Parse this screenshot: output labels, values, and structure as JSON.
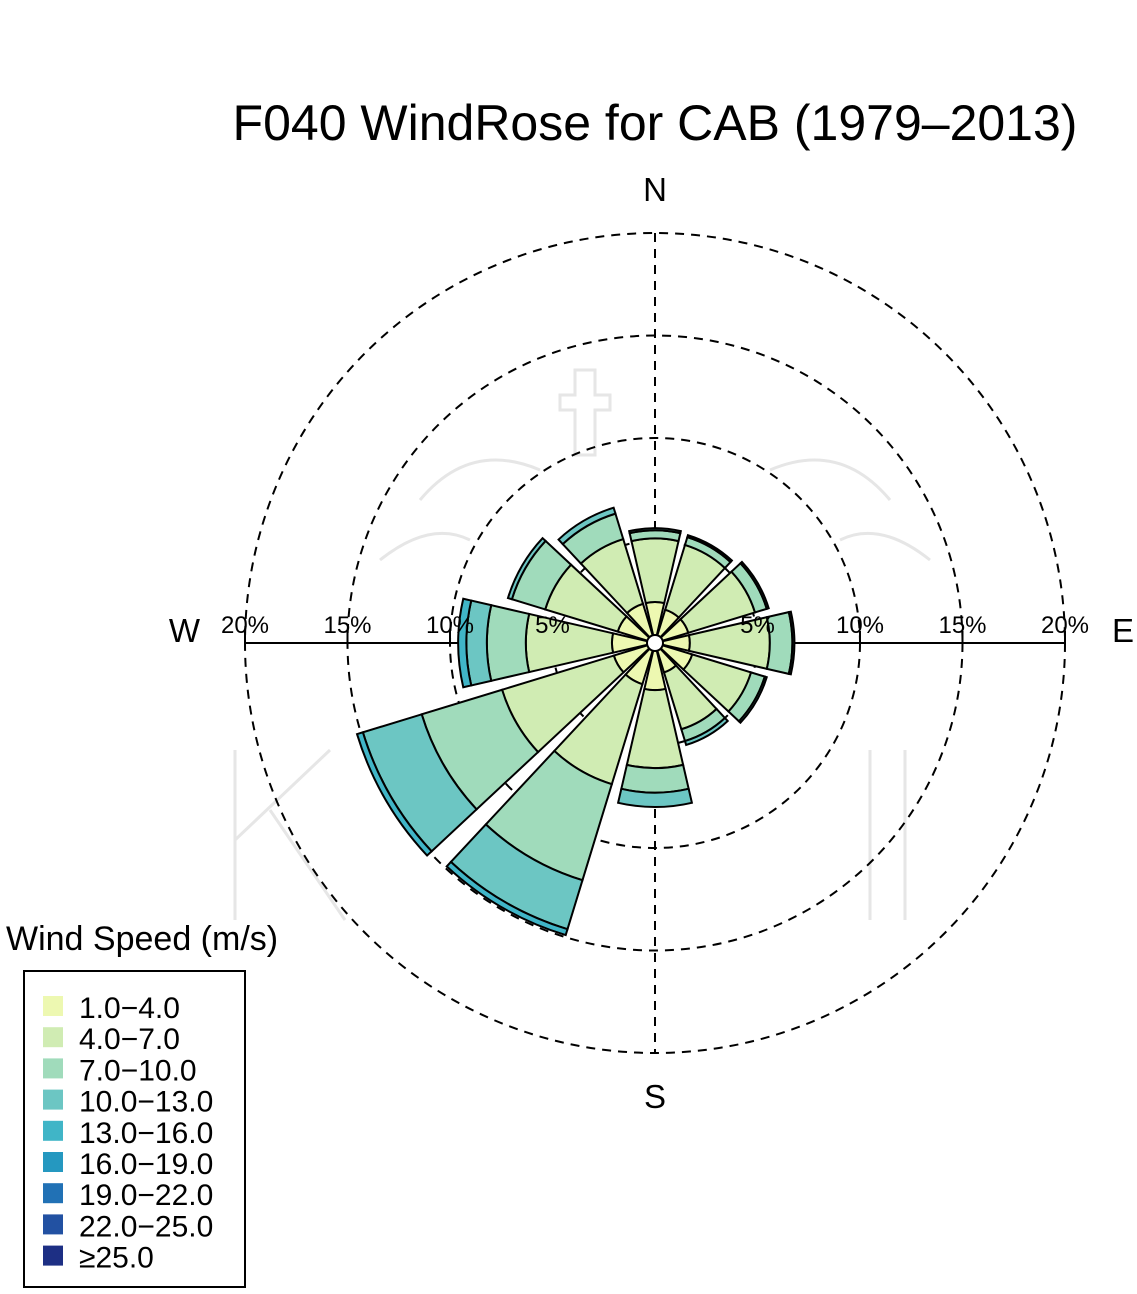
{
  "chart_data": {
    "type": "windrose",
    "title": "F040 WindRose for CAB (1979–2013)",
    "compass_labels": {
      "n": "N",
      "e": "E",
      "s": "S",
      "w": "W"
    },
    "radial_ticks": [
      {
        "value": 5,
        "label": "5%"
      },
      {
        "value": 10,
        "label": "10%"
      },
      {
        "value": 15,
        "label": "15%"
      },
      {
        "value": 20,
        "label": "20%"
      }
    ],
    "radial_max": 20,
    "grid": true,
    "legend": {
      "title": "Wind Speed (m/s)",
      "position": "bottom-left",
      "bins": [
        {
          "label": "1.0−4.0",
          "color": "#edf8b1"
        },
        {
          "label": "4.0−7.0",
          "color": "#d0ecb3"
        },
        {
          "label": "7.0−10.0",
          "color": "#a0dbbb"
        },
        {
          "label": "10.0−13.0",
          "color": "#6cc6c3"
        },
        {
          "label": "13.0−16.0",
          "color": "#40b5c7"
        },
        {
          "label": "16.0−19.0",
          "color": "#2598c0"
        },
        {
          "label": "19.0−22.0",
          "color": "#2171b5"
        },
        {
          "label": "22.0−25.0",
          "color": "#2251a2"
        },
        {
          "label": "≥25.0",
          "color": "#1d2f84"
        }
      ]
    },
    "sectors": [
      {
        "direction": 0,
        "cumulative": [
          2.0,
          5.1,
          5.5,
          5.6
        ]
      },
      {
        "direction": 30,
        "cumulative": [
          1.7,
          5.0,
          5.4,
          5.5
        ]
      },
      {
        "direction": 60,
        "cumulative": [
          1.7,
          5.1,
          5.7,
          5.8
        ]
      },
      {
        "direction": 90,
        "cumulative": [
          1.7,
          5.6,
          6.7,
          6.8
        ]
      },
      {
        "direction": 120,
        "cumulative": [
          1.9,
          4.9,
          5.6,
          5.7
        ]
      },
      {
        "direction": 150,
        "cumulative": [
          1.5,
          4.4,
          5.0,
          5.2
        ]
      },
      {
        "direction": 180,
        "cumulative": [
          2.3,
          6.1,
          7.3,
          8.0
        ]
      },
      {
        "direction": 210,
        "cumulative": [
          2.1,
          7.2,
          12.1,
          14.6,
          14.9
        ]
      },
      {
        "direction": 240,
        "cumulative": [
          2.1,
          7.8,
          11.9,
          14.9,
          15.2
        ]
      },
      {
        "direction": 270,
        "cumulative": [
          2.1,
          6.3,
          8.2,
          9.2,
          9.6
        ]
      },
      {
        "direction": 300,
        "cumulative": [
          1.9,
          5.6,
          7.3,
          7.5
        ]
      },
      {
        "direction": 330,
        "cumulative": [
          2.0,
          5.3,
          6.6,
          6.9
        ]
      }
    ]
  }
}
